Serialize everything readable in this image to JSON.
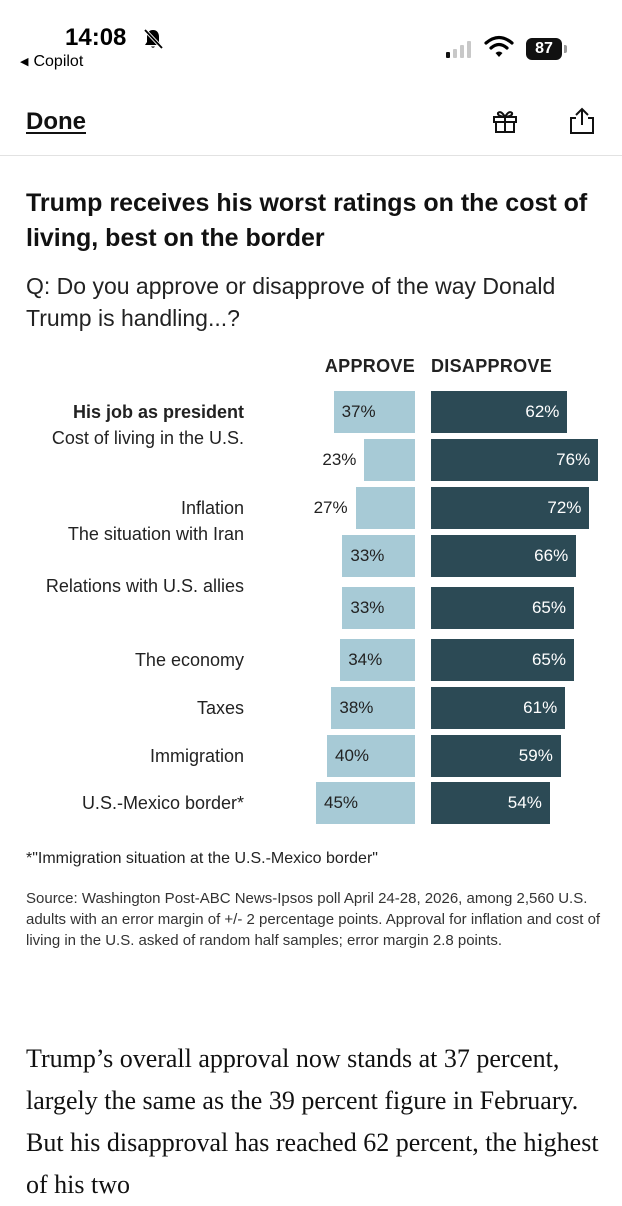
{
  "status_bar": {
    "time": "14:08",
    "back_app": "Copilot",
    "battery": "87",
    "icons": [
      "bell-slash-icon",
      "signal-icon",
      "wifi-icon",
      "battery-icon"
    ]
  },
  "nav": {
    "done_label": "Done",
    "icons": [
      "gift-icon",
      "share-icon"
    ]
  },
  "graphic": {
    "title": "Trump receives his worst ratings on the cost of living, best on the border",
    "question": "Q: Do you approve or disapprove of the way Donald Trump is handling...?",
    "approve_header": "APPROVE",
    "disapprove_header": "DISAPPROVE",
    "footnote": "*\"Immigration situation at the U.S.-Mexico border\"",
    "source": "Source: Washington Post-ABC News-Ipsos poll April 24-28, 2026, among 2,560 U.S. adults with an error margin of +/- 2 percentage points. Approval for inflation and cost of living in the U.S. asked of random half samples; error margin 2.8 points."
  },
  "chart_data": {
    "type": "bar",
    "categories": [
      "His job as president",
      "Cost of living in the U.S.",
      "Inflation",
      "The situation with Iran",
      "Relations with U.S. allies",
      "The economy",
      "Taxes",
      "Immigration",
      "U.S.-Mexico border*"
    ],
    "series": [
      {
        "name": "APPROVE",
        "values": [
          37,
          23,
          27,
          33,
          33,
          34,
          38,
          40,
          45
        ],
        "color": "#a7cad6"
      },
      {
        "name": "DISAPPROVE",
        "values": [
          62,
          76,
          72,
          66,
          65,
          65,
          61,
          59,
          54
        ],
        "color": "#2c4a55"
      }
    ],
    "value_labels": {
      "approve": [
        "37%",
        "23%",
        "27%",
        "33%",
        "33%",
        "34%",
        "38%",
        "40%",
        "45%"
      ],
      "disapprove": [
        "62%",
        "76%",
        "72%",
        "66%",
        "65%",
        "65%",
        "61%",
        "59%",
        "54%"
      ]
    },
    "bold_categories": [
      "His job as president"
    ]
  },
  "article": {
    "paragraph": "Trump’s overall approval now stands at 37 percent, largely the same as the 39 percent figure in February. But his disapproval has reached 62 percent, the highest of his two"
  }
}
